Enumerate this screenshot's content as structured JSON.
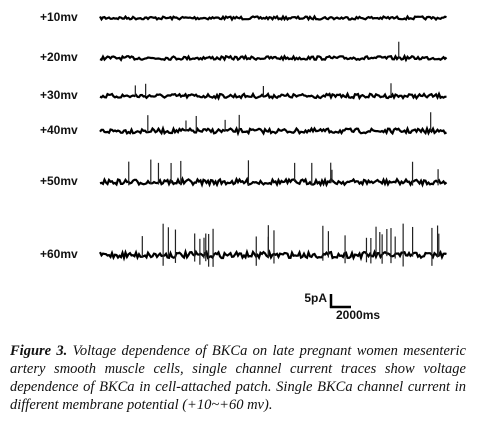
{
  "traces": [
    {
      "label": "+10mv"
    },
    {
      "label": "+20mv"
    },
    {
      "label": "+30mv"
    },
    {
      "label": "+40mv"
    },
    {
      "label": "+50mv"
    },
    {
      "label": "+60mv"
    }
  ],
  "scale_bar": {
    "current": "5pA",
    "time": "2000ms"
  },
  "caption": {
    "label": "Figure 3.",
    "text": "Voltage dependence of BKCa on late pregnant women mesenteric artery smooth muscle cells, single channel current traces show voltage dependence of BKCa in cell-attached patch. Single BKCa channel current in different membrane potential (+10~+60 mv)."
  }
}
